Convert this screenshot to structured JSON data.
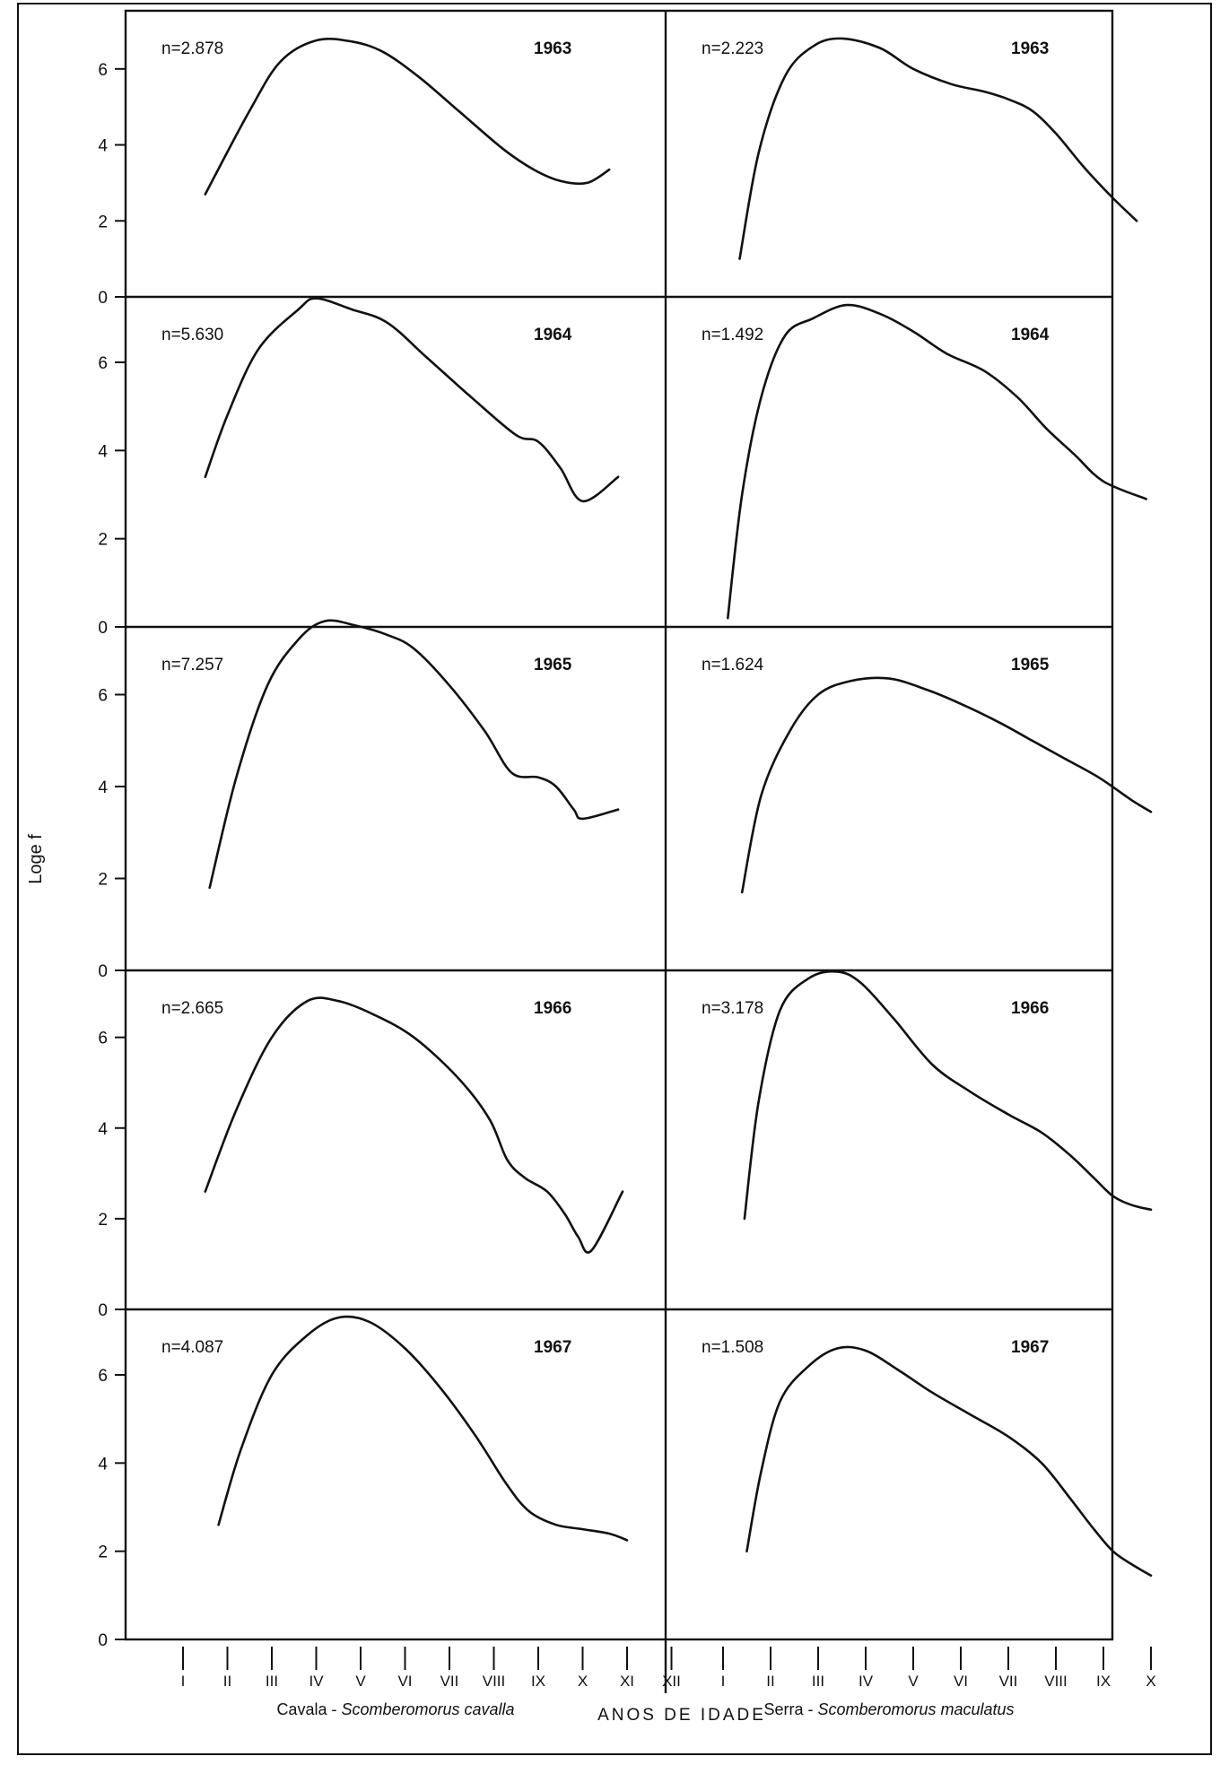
{
  "chart_data": {
    "type": "line",
    "ylabel": "Loge f",
    "xlabel": "ANOS DE IDADE",
    "y_ticks": [
      "0",
      "2",
      "4",
      "6"
    ],
    "ylim": [
      0,
      7.2
    ],
    "grid": false,
    "columns": [
      {
        "species": "Cavala - Scomberomorus cavalla",
        "species_common": "Cavala",
        "species_latin": "Scomberomorus cavalla",
        "ages": [
          "I",
          "II",
          "III",
          "IV",
          "V",
          "VI",
          "VII",
          "VIII",
          "IX",
          "X",
          "XI",
          "XII"
        ],
        "panels": [
          {
            "year": "1963",
            "n": "n=2.878",
            "x": [
              1.5,
              2.5,
              3.2,
              4.0,
              4.8,
              5.5,
              6.3,
              7.2,
              8.2,
              8.9,
              9.5,
              10.1,
              10.6
            ],
            "y": [
              2.7,
              4.9,
              6.2,
              6.75,
              6.72,
              6.45,
              5.8,
              4.9,
              3.9,
              3.35,
              3.05,
              3.0,
              3.35
            ]
          },
          {
            "year": "1964",
            "n": "n=5.630",
            "x": [
              1.5,
              2.0,
              2.7,
              3.6,
              4.0,
              4.8,
              5.6,
              6.5,
              7.5,
              8.5,
              9.0,
              9.5,
              10.0,
              10.8
            ],
            "y": [
              3.4,
              4.8,
              6.3,
              7.2,
              7.45,
              7.2,
              6.9,
              6.1,
              5.2,
              4.35,
              4.2,
              3.6,
              2.85,
              3.4
            ]
          },
          {
            "year": "1965",
            "n": "n=7.257",
            "x": [
              1.6,
              2.2,
              2.9,
              3.6,
              4.2,
              4.9,
              5.6,
              6.2,
              7.0,
              7.8,
              8.4,
              9.0,
              9.4,
              9.8,
              10.0,
              10.8
            ],
            "y": [
              1.8,
              4.2,
              6.2,
              7.2,
              7.6,
              7.5,
              7.3,
              7.0,
              6.2,
              5.2,
              4.3,
              4.2,
              4.0,
              3.5,
              3.3,
              3.5
            ]
          },
          {
            "year": "1966",
            "n": "n=2.665",
            "x": [
              1.5,
              2.2,
              3.0,
              3.8,
              4.5,
              5.3,
              6.2,
              7.2,
              7.9,
              8.3,
              8.7,
              9.2,
              9.6,
              9.9,
              10.2,
              10.9
            ],
            "y": [
              2.6,
              4.4,
              6.0,
              6.8,
              6.8,
              6.5,
              6.0,
              5.1,
              4.2,
              3.3,
              2.9,
              2.6,
              2.1,
              1.6,
              1.3,
              2.6
            ]
          },
          {
            "year": "1967",
            "n": "n=4.087",
            "x": [
              1.8,
              2.3,
              3.0,
              3.8,
              4.5,
              5.2,
              6.0,
              6.8,
              7.6,
              8.3,
              8.8,
              9.4,
              10.0,
              10.6,
              11.0
            ],
            "y": [
              2.6,
              4.3,
              6.0,
              6.9,
              7.3,
              7.2,
              6.6,
              5.7,
              4.6,
              3.5,
              2.9,
              2.6,
              2.5,
              2.4,
              2.25
            ]
          }
        ]
      },
      {
        "species": "Serra - Scomberomorus maculatus",
        "species_common": "Serra",
        "species_latin": "Scomberomorus maculatus",
        "ages": [
          "I",
          "II",
          "III",
          "IV",
          "V",
          "VI",
          "VII",
          "VIII",
          "IX",
          "X"
        ],
        "panels": [
          {
            "year": "1963",
            "n": "n=2.223",
            "x": [
              1.35,
              1.75,
              2.3,
              2.9,
              3.5,
              4.3,
              5.0,
              5.8,
              6.5,
              7.0,
              7.5,
              8.0,
              8.6,
              9.2,
              9.7
            ],
            "y": [
              1.0,
              3.8,
              5.8,
              6.6,
              6.8,
              6.55,
              6.0,
              5.6,
              5.4,
              5.2,
              4.9,
              4.3,
              3.4,
              2.6,
              2.0
            ]
          },
          {
            "year": "1964",
            "n": "n=1.492",
            "x": [
              1.1,
              1.4,
              1.8,
              2.3,
              2.9,
              3.6,
              4.3,
              5.0,
              5.7,
              6.5,
              7.2,
              7.8,
              8.4,
              9.0,
              9.9
            ],
            "y": [
              0.2,
              3.0,
              5.2,
              6.6,
              7.0,
              7.3,
              7.1,
              6.7,
              6.2,
              5.8,
              5.2,
              4.5,
              3.9,
              3.3,
              2.9
            ]
          },
          {
            "year": "1965",
            "n": "n=1.624",
            "x": [
              1.4,
              1.8,
              2.4,
              3.0,
              3.7,
              4.5,
              5.3,
              6.0,
              6.8,
              7.5,
              8.2,
              8.9,
              9.6,
              10.0
            ],
            "y": [
              1.7,
              3.8,
              5.2,
              6.0,
              6.3,
              6.35,
              6.1,
              5.8,
              5.4,
              5.0,
              4.6,
              4.2,
              3.7,
              3.45
            ]
          },
          {
            "year": "1966",
            "n": "n=3.178",
            "x": [
              1.45,
              1.75,
              2.2,
              2.8,
              3.4,
              3.9,
              4.6,
              5.4,
              6.2,
              7.0,
              7.7,
              8.3,
              8.8,
              9.2,
              9.6,
              10.0
            ],
            "y": [
              2.0,
              4.6,
              6.6,
              7.3,
              7.45,
              7.2,
              6.4,
              5.4,
              4.8,
              4.3,
              3.9,
              3.4,
              2.9,
              2.5,
              2.3,
              2.2
            ]
          },
          {
            "year": "1967",
            "n": "n=1.508",
            "x": [
              1.5,
              1.8,
              2.2,
              2.8,
              3.4,
              4.0,
              4.7,
              5.4,
              6.2,
              7.0,
              7.7,
              8.3,
              8.8,
              9.2,
              9.6,
              10.0
            ],
            "y": [
              2.0,
              3.8,
              5.4,
              6.2,
              6.6,
              6.55,
              6.1,
              5.6,
              5.1,
              4.6,
              4.0,
              3.2,
              2.5,
              2.0,
              1.7,
              1.45
            ]
          }
        ]
      }
    ]
  }
}
